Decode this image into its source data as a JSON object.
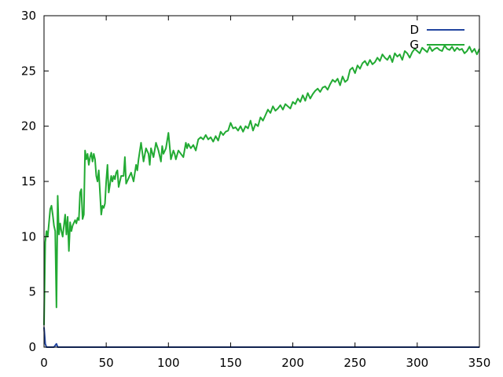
{
  "chart_data": {
    "type": "line",
    "title": "",
    "xlabel": "",
    "ylabel": "",
    "xlim": [
      0,
      350
    ],
    "ylim": [
      0,
      30
    ],
    "x_ticks": [
      "0",
      "50",
      "100",
      "150",
      "200",
      "250",
      "300",
      "350"
    ],
    "y_ticks": [
      "0",
      "5",
      "10",
      "15",
      "20",
      "25",
      "30"
    ],
    "grid": false,
    "legend_position": "top-right",
    "series": [
      {
        "name": "D",
        "color": "#2346a0",
        "x": [
          0,
          1,
          2,
          5,
          8,
          10,
          11,
          13,
          50,
          100,
          150,
          200,
          250,
          300,
          350
        ],
        "y": [
          1.8,
          0.3,
          0.0,
          0.0,
          0.0,
          0.3,
          0.0,
          0.0,
          0.0,
          0.0,
          0.0,
          0.0,
          0.0,
          0.0,
          0.0
        ]
      },
      {
        "name": "G",
        "color": "#22aa33",
        "x": [
          0,
          1,
          2,
          3,
          5,
          6,
          7,
          8,
          9,
          10,
          11,
          12,
          13,
          14,
          15,
          16,
          17,
          18,
          19,
          20,
          21,
          22,
          23,
          25,
          26,
          27,
          28,
          29,
          30,
          31,
          32,
          33,
          34,
          35,
          36,
          37,
          38,
          39,
          40,
          41,
          42,
          43,
          44,
          46,
          47,
          48,
          49,
          50,
          51,
          52,
          53,
          54,
          55,
          56,
          57,
          58,
          59,
          60,
          62,
          64,
          65,
          66,
          68,
          70,
          72,
          74,
          75,
          76,
          78,
          80,
          82,
          84,
          85,
          86,
          88,
          90,
          92,
          94,
          95,
          96,
          98,
          100,
          102,
          104,
          105,
          106,
          108,
          110,
          112,
          114,
          115,
          116,
          118,
          120,
          122,
          124,
          126,
          128,
          130,
          132,
          134,
          136,
          138,
          140,
          142,
          144,
          146,
          148,
          150,
          152,
          154,
          156,
          158,
          160,
          162,
          164,
          166,
          168,
          170,
          172,
          174,
          176,
          178,
          180,
          182,
          184,
          186,
          188,
          190,
          192,
          194,
          196,
          198,
          200,
          202,
          204,
          206,
          208,
          210,
          212,
          214,
          216,
          218,
          220,
          222,
          224,
          226,
          228,
          230,
          232,
          234,
          236,
          238,
          240,
          242,
          244,
          246,
          248,
          250,
          252,
          254,
          256,
          258,
          260,
          262,
          264,
          266,
          268,
          270,
          272,
          274,
          276,
          278,
          280,
          282,
          284,
          286,
          288,
          290,
          292,
          294,
          296,
          298,
          300,
          302,
          304,
          306,
          308,
          310,
          312,
          314,
          316,
          318,
          320,
          322,
          324,
          326,
          328,
          330,
          332,
          334,
          336,
          338,
          340,
          342,
          344,
          346,
          348,
          350
        ],
        "y": [
          2.0,
          9.5,
          10.5,
          10.0,
          12.5,
          12.8,
          12.0,
          11.0,
          10.5,
          3.6,
          13.7,
          10.2,
          11.2,
          10.5,
          10.0,
          11.0,
          12.0,
          10.2,
          11.8,
          8.7,
          11.3,
          10.5,
          11.0,
          11.5,
          11.2,
          11.7,
          11.5,
          14.0,
          14.3,
          11.6,
          12.0,
          17.8,
          17.0,
          17.5,
          16.5,
          17.2,
          17.6,
          16.8,
          17.5,
          17.0,
          15.5,
          15.0,
          16.0,
          12.0,
          12.8,
          12.6,
          13.0,
          15.0,
          16.5,
          14.0,
          14.7,
          15.5,
          15.0,
          15.5,
          15.2,
          15.8,
          16.0,
          14.5,
          15.5,
          15.5,
          17.2,
          14.8,
          15.3,
          15.8,
          15.0,
          16.5,
          16.0,
          17.0,
          18.5,
          16.8,
          18.0,
          17.5,
          16.5,
          18.0,
          17.2,
          18.5,
          17.8,
          16.8,
          18.2,
          17.5,
          18.0,
          19.4,
          17.0,
          17.8,
          17.5,
          17.0,
          17.8,
          17.5,
          17.2,
          18.5,
          18.0,
          18.4,
          18.0,
          18.3,
          17.8,
          18.8,
          19.0,
          18.8,
          19.2,
          18.8,
          19.0,
          18.6,
          19.1,
          18.7,
          19.5,
          19.2,
          19.5,
          19.6,
          20.3,
          19.8,
          19.9,
          19.6,
          20.0,
          19.5,
          20.0,
          19.8,
          20.5,
          19.6,
          20.2,
          20.0,
          20.8,
          20.5,
          21.0,
          21.5,
          21.2,
          21.8,
          21.4,
          21.6,
          21.9,
          21.5,
          22.0,
          21.8,
          21.6,
          22.2,
          22.0,
          22.5,
          22.2,
          22.8,
          22.3,
          23.0,
          22.5,
          22.9,
          23.2,
          23.4,
          23.1,
          23.5,
          23.6,
          23.3,
          23.8,
          24.2,
          24.0,
          24.3,
          23.7,
          24.5,
          24.0,
          24.2,
          25.1,
          25.3,
          24.8,
          25.5,
          25.2,
          25.7,
          25.9,
          25.5,
          26.0,
          25.6,
          25.8,
          26.2,
          25.9,
          26.5,
          26.2,
          26.0,
          26.4,
          25.8,
          26.6,
          26.3,
          26.5,
          26.0,
          26.8,
          26.6,
          26.2,
          26.7,
          27.0,
          26.8,
          26.6,
          27.1,
          26.9,
          26.7,
          27.2,
          26.8,
          27.0,
          27.1,
          26.9,
          26.8,
          27.3,
          27.0,
          26.9,
          27.2,
          26.8,
          27.1,
          26.9,
          27.0,
          26.6,
          26.8,
          27.2,
          26.7,
          27.0,
          26.5,
          27.0
        ]
      }
    ]
  }
}
